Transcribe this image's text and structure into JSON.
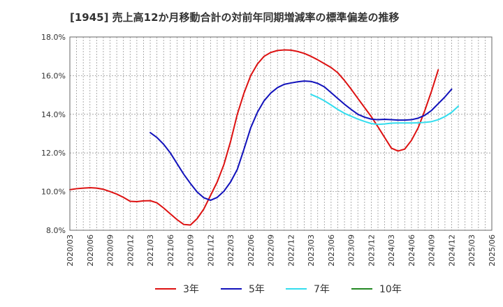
{
  "chart_data": {
    "type": "line",
    "title": "[1945]  売上高12か月移動合計の対前年同期増減率の標準偏差の推移",
    "xlabel": "",
    "ylabel": "",
    "ylim": [
      8.0,
      18.0
    ],
    "y_ticks": [
      "8.0%",
      "10.0%",
      "12.0%",
      "14.0%",
      "16.0%",
      "18.0%"
    ],
    "x_ticks": [
      "2020/03",
      "2020/06",
      "2020/09",
      "2020/12",
      "2021/03",
      "2021/06",
      "2021/09",
      "2021/12",
      "2022/03",
      "2022/06",
      "2022/09",
      "2022/12",
      "2023/03",
      "2023/06",
      "2023/09",
      "2023/12",
      "2024/03",
      "2024/06",
      "2024/09",
      "2024/12",
      "2025/03",
      "2025/06"
    ],
    "grid": true,
    "legend_position": "bottom",
    "series": [
      {
        "name": "3年",
        "color": "#dd1111",
        "start_month_index": 0,
        "values": [
          10.1,
          10.15,
          10.18,
          10.2,
          10.18,
          10.12,
          10.0,
          9.87,
          9.7,
          9.5,
          9.48,
          9.52,
          9.53,
          9.42,
          9.15,
          8.85,
          8.55,
          8.3,
          8.27,
          8.6,
          9.1,
          9.8,
          10.5,
          11.4,
          12.6,
          14.0,
          15.1,
          16.0,
          16.6,
          17.0,
          17.2,
          17.3,
          17.33,
          17.32,
          17.25,
          17.15,
          17.0,
          16.82,
          16.62,
          16.42,
          16.15,
          15.75,
          15.3,
          14.82,
          14.35,
          13.88,
          13.35,
          12.8,
          12.25,
          12.1,
          12.2,
          12.65,
          13.3,
          14.2,
          15.2,
          16.3
        ]
      },
      {
        "name": "5年",
        "color": "#1111bb",
        "start_month_index": 12,
        "values": [
          13.05,
          12.8,
          12.45,
          12.0,
          11.45,
          10.9,
          10.42,
          9.98,
          9.68,
          9.55,
          9.7,
          10.02,
          10.5,
          11.15,
          12.2,
          13.3,
          14.1,
          14.7,
          15.1,
          15.38,
          15.55,
          15.62,
          15.68,
          15.72,
          15.7,
          15.6,
          15.42,
          15.12,
          14.82,
          14.52,
          14.25,
          14.0,
          13.85,
          13.75,
          13.72,
          13.74,
          13.72,
          13.7,
          13.7,
          13.72,
          13.8,
          13.95,
          14.2,
          14.55,
          14.9,
          15.3
        ]
      },
      {
        "name": "7年",
        "color": "#33ddee",
        "start_month_index": 36,
        "values": [
          15.03,
          14.88,
          14.7,
          14.48,
          14.25,
          14.05,
          13.9,
          13.75,
          13.63,
          13.52,
          13.48,
          13.5,
          13.54,
          13.55,
          13.55,
          13.55,
          13.56,
          13.58,
          13.62,
          13.72,
          13.88,
          14.1,
          14.42
        ]
      },
      {
        "name": "10年",
        "color": "#228822",
        "start_month_index": 0,
        "values": []
      }
    ]
  }
}
